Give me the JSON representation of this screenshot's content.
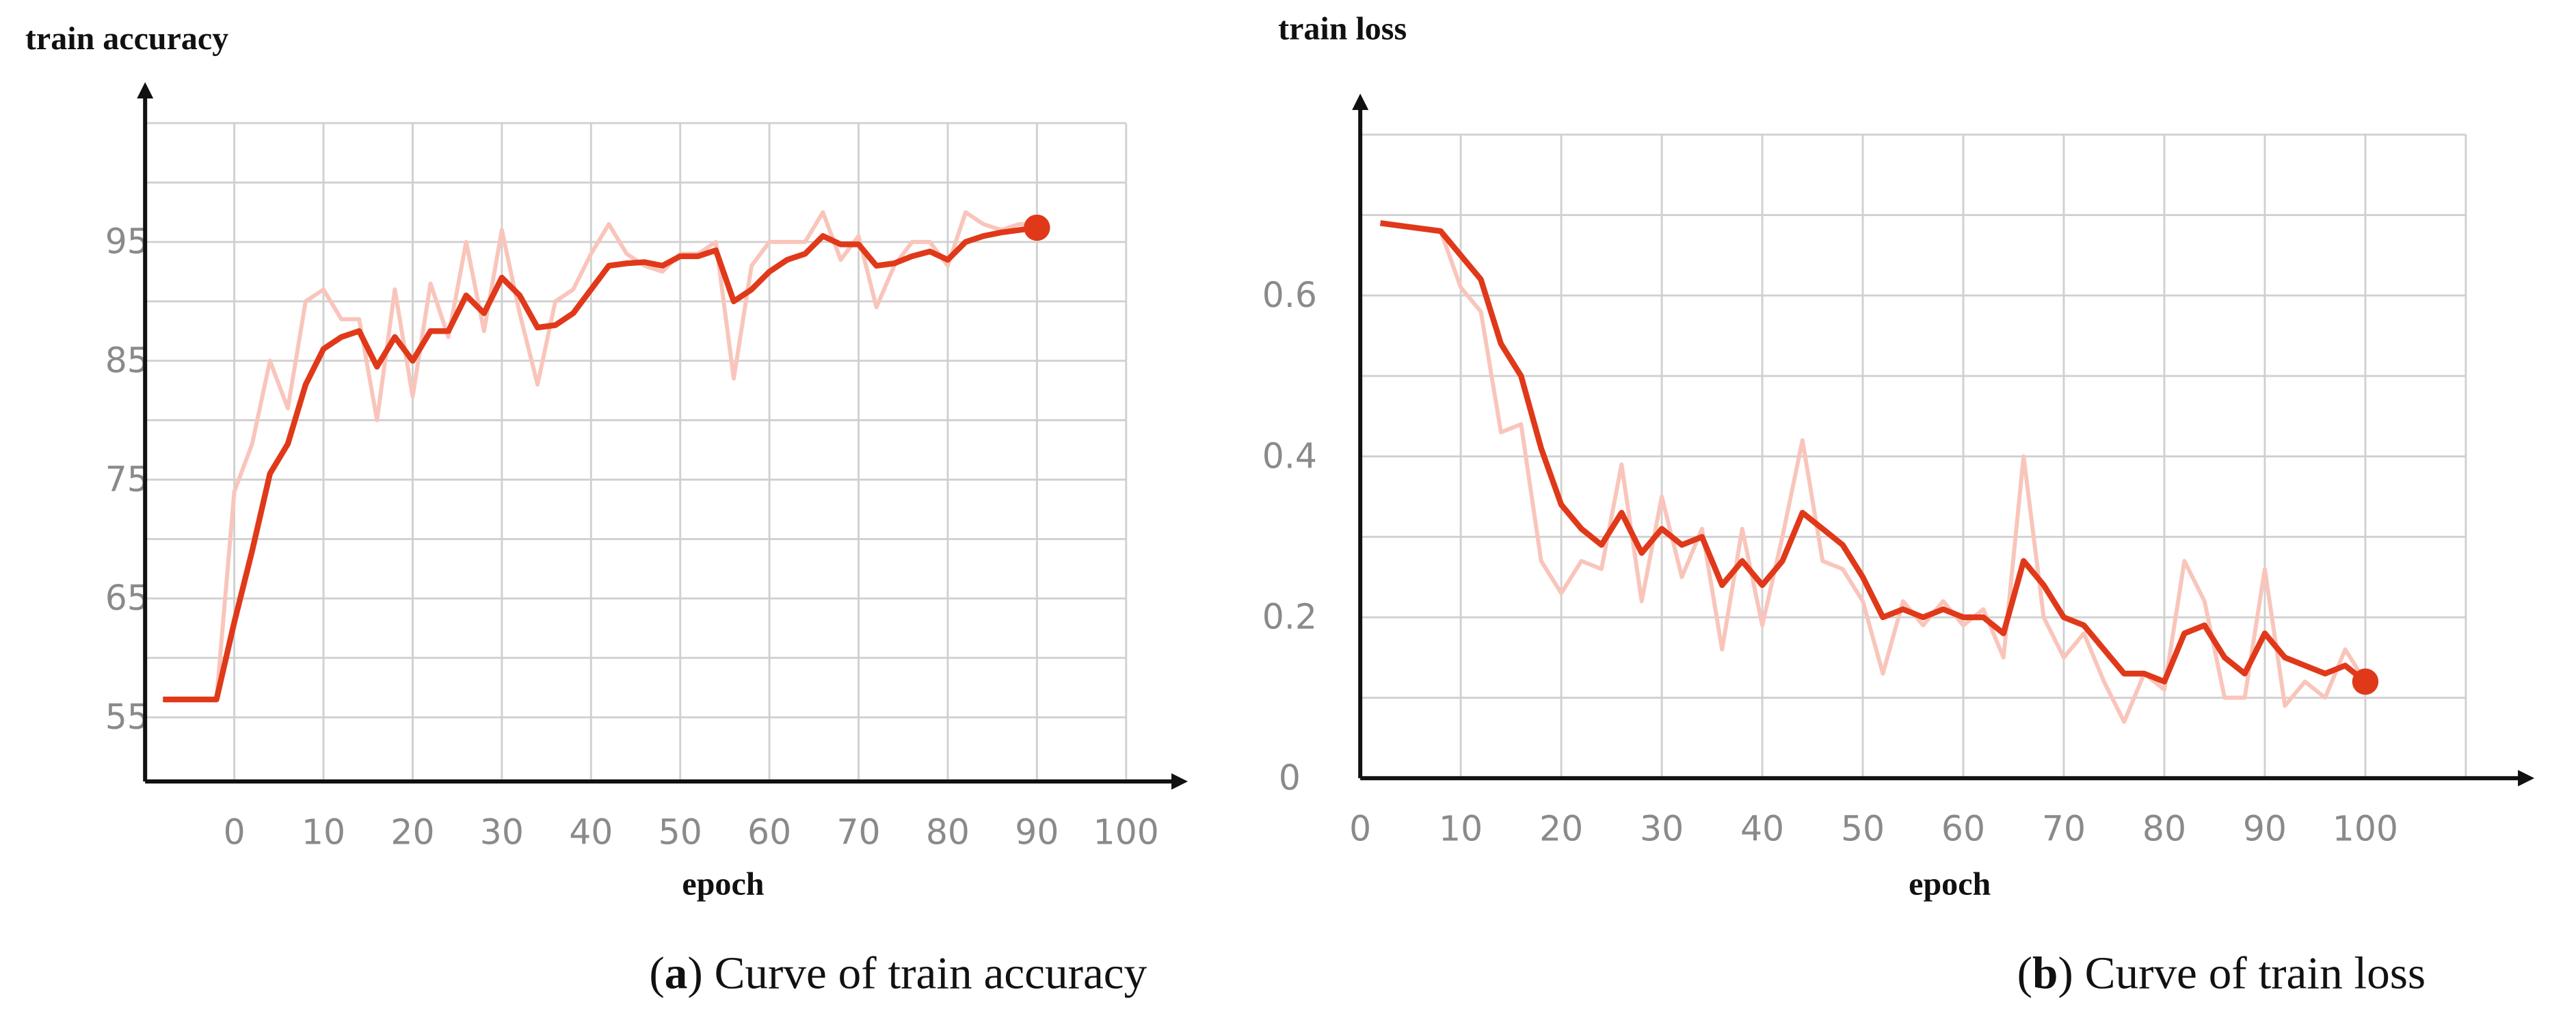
{
  "chart_data": [
    {
      "type": "line",
      "y_label": "train accuracy",
      "x_label": "epoch",
      "caption": [
        "(",
        "a",
        ") Curve of train accuracy"
      ],
      "x": [
        -8,
        -2,
        0,
        2,
        4,
        6,
        8,
        10,
        12,
        14,
        16,
        18,
        20,
        22,
        24,
        26,
        28,
        30,
        32,
        34,
        36,
        38,
        40,
        42,
        44,
        46,
        48,
        50,
        52,
        54,
        56,
        58,
        60,
        62,
        64,
        66,
        68,
        70,
        72,
        74,
        76,
        78,
        80,
        82,
        84,
        86,
        88,
        90
      ],
      "series": [
        {
          "color": "#f9c5bb",
          "values": [
            56.5,
            56.5,
            74,
            78,
            85,
            81,
            90,
            91,
            88.5,
            88.5,
            80,
            91,
            82,
            91.5,
            87,
            95,
            87.5,
            96,
            89,
            83,
            90,
            91,
            94,
            96.5,
            94,
            93,
            92.5,
            94,
            94,
            95,
            83.5,
            93,
            95,
            95,
            95,
            97.5,
            93.5,
            95.5,
            89.5,
            93,
            95,
            95,
            93,
            97.5,
            96.5,
            96,
            96.5,
            96.5
          ]
        },
        {
          "color": "#e0391a",
          "values": [
            56.5,
            56.5,
            63,
            69,
            75.5,
            78,
            83,
            86,
            87,
            87.5,
            84.5,
            87,
            85,
            87.5,
            87.5,
            90.5,
            89,
            92,
            90.5,
            87.8,
            88,
            89,
            91,
            93,
            93.2,
            93.3,
            93,
            93.8,
            93.8,
            94.3,
            90,
            91,
            92.5,
            93.5,
            94,
            95.5,
            94.8,
            94.8,
            93,
            93.2,
            93.8,
            94.2,
            93.5,
            95,
            95.5,
            95.8,
            96,
            96.2
          ]
        }
      ],
      "xlim": [
        -10,
        106
      ],
      "ylim": [
        49.6,
        105
      ],
      "xticks": [
        0,
        10,
        20,
        30,
        40,
        50,
        60,
        70,
        80,
        90,
        100
      ],
      "yticks": [
        55,
        65,
        75,
        85,
        95
      ],
      "ygrid_minor": [
        60,
        70,
        80,
        90,
        100,
        105
      ],
      "xgrid_minor": [],
      "grid": true,
      "end_marker": true
    },
    {
      "type": "line",
      "y_label": "train loss",
      "x_label": "epoch",
      "caption": [
        "(",
        "b",
        ") Curve of train loss"
      ],
      "x": [
        2,
        8,
        10,
        12,
        14,
        16,
        18,
        20,
        22,
        24,
        26,
        28,
        30,
        32,
        34,
        36,
        38,
        40,
        42,
        44,
        46,
        48,
        50,
        52,
        54,
        56,
        58,
        60,
        62,
        64,
        66,
        68,
        70,
        72,
        74,
        76,
        78,
        80,
        82,
        84,
        86,
        88,
        90,
        92,
        94,
        96,
        98,
        100
      ],
      "series": [
        {
          "color": "#f9c5bb",
          "values": [
            0.69,
            0.68,
            0.61,
            0.58,
            0.43,
            0.44,
            0.27,
            0.23,
            0.27,
            0.26,
            0.39,
            0.22,
            0.35,
            0.25,
            0.31,
            0.16,
            0.31,
            0.19,
            0.3,
            0.42,
            0.27,
            0.26,
            0.22,
            0.13,
            0.22,
            0.19,
            0.22,
            0.19,
            0.21,
            0.15,
            0.4,
            0.2,
            0.15,
            0.18,
            0.12,
            0.07,
            0.13,
            0.11,
            0.27,
            0.22,
            0.1,
            0.1,
            0.26,
            0.09,
            0.12,
            0.1,
            0.16,
            0.12
          ]
        },
        {
          "color": "#e0391a",
          "values": [
            0.69,
            0.68,
            0.65,
            0.62,
            0.54,
            0.5,
            0.41,
            0.34,
            0.31,
            0.29,
            0.33,
            0.28,
            0.31,
            0.29,
            0.3,
            0.24,
            0.27,
            0.24,
            0.27,
            0.33,
            0.31,
            0.29,
            0.25,
            0.2,
            0.21,
            0.2,
            0.21,
            0.2,
            0.2,
            0.18,
            0.27,
            0.24,
            0.2,
            0.19,
            0.16,
            0.13,
            0.13,
            0.12,
            0.18,
            0.19,
            0.15,
            0.13,
            0.18,
            0.15,
            0.14,
            0.13,
            0.14,
            0.12
          ]
        }
      ],
      "xlim": [
        0,
        116
      ],
      "ylim": [
        0,
        0.8
      ],
      "xticks": [
        0,
        10,
        20,
        30,
        40,
        50,
        60,
        70,
        80,
        90,
        100
      ],
      "yticks": [
        0,
        0.2,
        0.4,
        0.6
      ],
      "ygrid_minor": [
        0.1,
        0.3,
        0.5,
        0.7,
        0.8
      ],
      "xgrid_minor": [
        110
      ],
      "grid": true,
      "end_marker": true
    }
  ]
}
